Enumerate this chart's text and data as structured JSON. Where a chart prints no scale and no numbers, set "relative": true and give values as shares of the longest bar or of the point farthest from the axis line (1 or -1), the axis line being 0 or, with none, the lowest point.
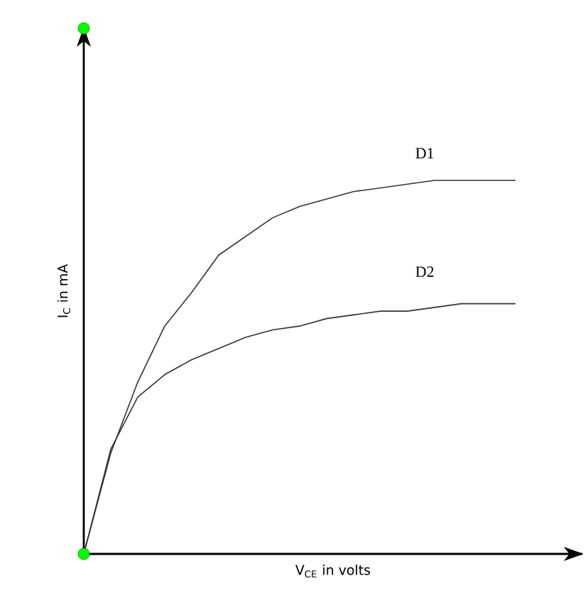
{
  "chart_data": {
    "type": "line",
    "relative": true,
    "xlabel": "V$_{CE}$ in volts",
    "ylabel": "I$_{C}$ in mA",
    "legend": false,
    "marker": "none",
    "line_style": "solid",
    "categories": [
      null,
      null,
      null,
      null,
      null,
      null,
      null,
      null,
      null,
      null,
      null,
      null,
      null,
      null,
      null,
      null,
      null
    ],
    "series": [
      {
        "name": "D1",
        "color": "#333333",
        "values": [
          0,
          0.27,
          0.46,
          0.61,
          0.7,
          0.8,
          0.85,
          0.9,
          0.93,
          0.95,
          0.97,
          0.98,
          0.99,
          1,
          1,
          1,
          1
        ]
      },
      {
        "name": "D2",
        "color": "#333333",
        "values": [
          0,
          0.28,
          0.42,
          0.48,
          0.52,
          0.55,
          0.58,
          0.6,
          0.61,
          0.63,
          0.64,
          0.65,
          0.65,
          0.66,
          0.67,
          0.67,
          0.67
        ]
      }
    ]
  }
}
